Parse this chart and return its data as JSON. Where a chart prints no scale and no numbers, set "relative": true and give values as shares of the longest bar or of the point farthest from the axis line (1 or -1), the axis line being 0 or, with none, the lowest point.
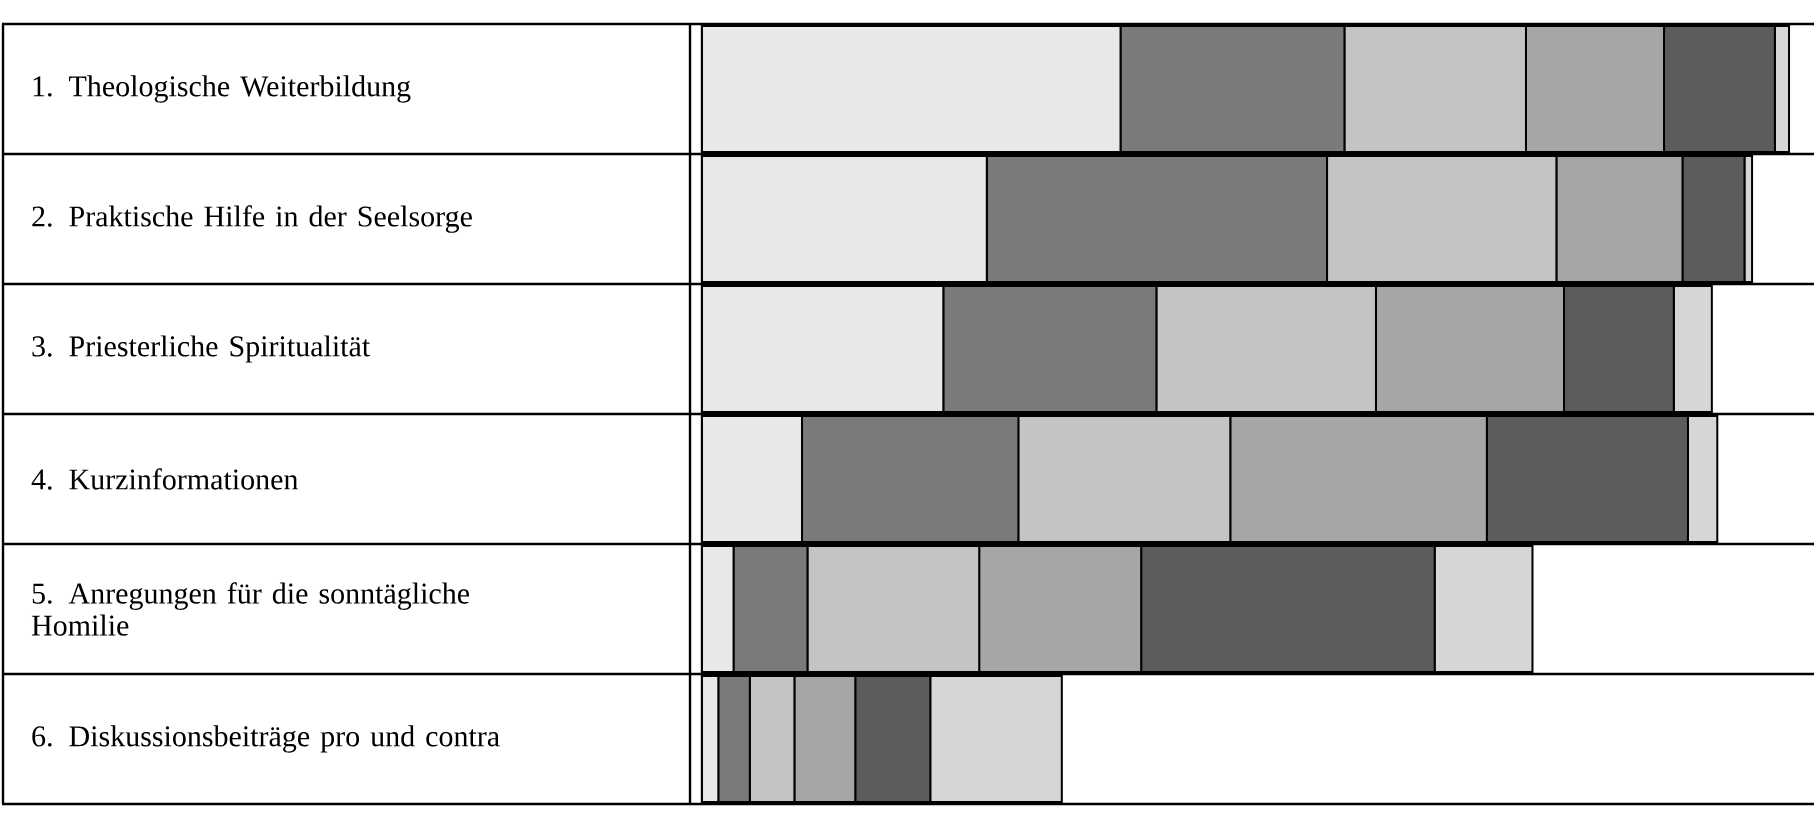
{
  "chart_data": {
    "type": "bar",
    "orientation": "horizontal",
    "stacked": true,
    "relative": true,
    "categories": [
      "1. Theologische Weiterbildung",
      "2. Praktische Hilfe in der Seelsorge",
      "3. Priesterliche Spiritualität",
      "4. Kurzinformationen",
      "5. Anregungen für die sonntägliche Homilie",
      "6. Diskussionsbeiträge pro und contra"
    ],
    "series": [
      {
        "color": "#e8e8e8",
        "values": [
          0.385,
          0.262,
          0.222,
          0.092,
          0.029,
          0.015
        ]
      },
      {
        "color": "#7a7a7a",
        "values": [
          0.206,
          0.313,
          0.196,
          0.199,
          0.068,
          0.029
        ]
      },
      {
        "color": "#c4c4c4",
        "values": [
          0.167,
          0.211,
          0.202,
          0.195,
          0.158,
          0.041
        ]
      },
      {
        "color": "#a6a6a6",
        "values": [
          0.127,
          0.116,
          0.173,
          0.236,
          0.149,
          0.056
        ]
      },
      {
        "color": "#5c5c5c",
        "values": [
          0.102,
          0.057,
          0.101,
          0.185,
          0.27,
          0.069
        ]
      },
      {
        "color": "#d6d6d6",
        "values": [
          0.013,
          0.007,
          0.035,
          0.027,
          0.09,
          0.121
        ]
      }
    ]
  }
}
